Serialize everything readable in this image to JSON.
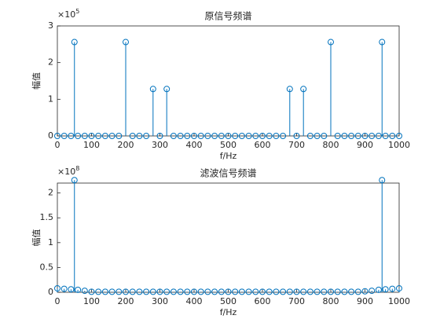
{
  "chart_data": [
    {
      "type": "stem",
      "title": "原信号频谱",
      "x_label": "f/Hz",
      "y_label": "幅值",
      "y_exponent_base": "×10",
      "y_exponent": "5",
      "color": "#0072bd",
      "x": [
        0,
        20,
        40,
        50,
        60,
        80,
        100,
        120,
        140,
        160,
        180,
        200,
        220,
        240,
        260,
        280,
        300,
        320,
        340,
        360,
        380,
        400,
        420,
        440,
        460,
        480,
        500,
        520,
        540,
        560,
        580,
        600,
        620,
        640,
        660,
        680,
        700,
        720,
        740,
        760,
        780,
        800,
        820,
        840,
        860,
        880,
        900,
        920,
        940,
        950,
        960,
        980,
        1000
      ],
      "values": [
        0,
        0,
        0,
        2.56,
        0,
        0,
        0,
        0,
        0,
        0,
        0,
        2.56,
        0,
        0,
        0,
        1.28,
        0,
        1.28,
        0,
        0,
        0,
        0,
        0,
        0,
        0,
        0,
        0,
        0,
        0,
        0,
        0,
        0,
        0,
        0,
        0,
        1.28,
        0,
        1.28,
        0,
        0,
        0,
        2.56,
        0,
        0,
        0,
        0,
        0,
        0,
        0,
        2.56,
        0,
        0,
        0
      ],
      "xlim": [
        0,
        1000
      ],
      "xticks": [
        0,
        100,
        200,
        300,
        400,
        500,
        600,
        700,
        800,
        900,
        1000
      ],
      "ylim": [
        0,
        3
      ],
      "yticks": [
        0,
        1,
        2,
        3
      ]
    },
    {
      "type": "stem",
      "title": "滤波信号频谱",
      "x_label": "f/Hz",
      "y_label": "幅值",
      "y_exponent_base": "×10",
      "y_exponent": "8",
      "color": "#0072bd",
      "x": [
        0,
        20,
        40,
        50,
        60,
        80,
        100,
        120,
        140,
        160,
        180,
        200,
        220,
        240,
        260,
        280,
        300,
        320,
        340,
        360,
        380,
        400,
        420,
        440,
        460,
        480,
        500,
        520,
        540,
        560,
        580,
        600,
        620,
        640,
        660,
        680,
        700,
        720,
        740,
        760,
        780,
        800,
        820,
        840,
        860,
        880,
        900,
        920,
        940,
        950,
        960,
        980,
        1000
      ],
      "values": [
        0.08,
        0.07,
        0.06,
        2.26,
        0.05,
        0.03,
        0.01,
        0.01,
        0.01,
        0.01,
        0.01,
        0.01,
        0.01,
        0.01,
        0.01,
        0.01,
        0.01,
        0.01,
        0.01,
        0.01,
        0.01,
        0.01,
        0.01,
        0.01,
        0.01,
        0.01,
        0.01,
        0.01,
        0.01,
        0.01,
        0.01,
        0.01,
        0.01,
        0.01,
        0.01,
        0.01,
        0.01,
        0.01,
        0.01,
        0.01,
        0.01,
        0.01,
        0.01,
        0.01,
        0.01,
        0.01,
        0.02,
        0.03,
        0.05,
        2.26,
        0.06,
        0.07,
        0.08
      ],
      "xlim": [
        0,
        1000
      ],
      "xticks": [
        0,
        100,
        200,
        300,
        400,
        500,
        600,
        700,
        800,
        900,
        1000
      ],
      "ylim": [
        0,
        2.2
      ],
      "yticks": [
        0,
        0.5,
        1,
        1.5,
        2
      ]
    }
  ]
}
